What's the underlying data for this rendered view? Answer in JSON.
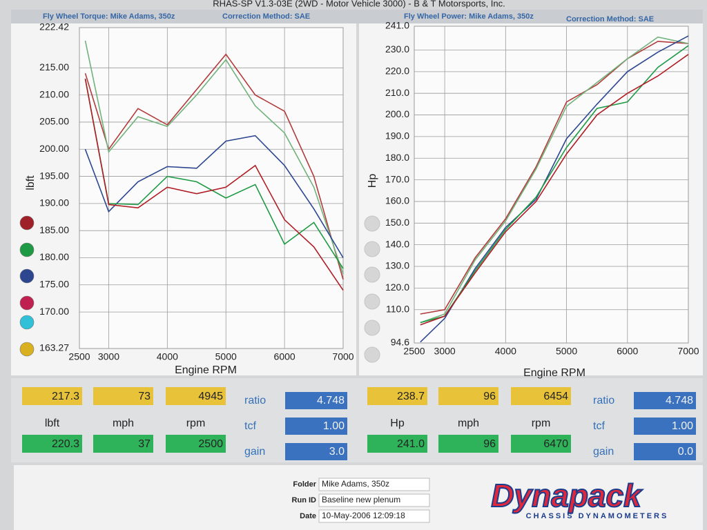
{
  "header": {
    "title": "RHAS-SP V1.3-03E  (2WD - Motor Vehicle 3000) - B & T Motorsports, Inc."
  },
  "chart_data": [
    {
      "type": "line",
      "title": "Fly Wheel Torque: Mike Adams, 350z",
      "subtitle": "Correction Method: SAE",
      "x_label": "Engine RPM",
      "y_label": "lbft",
      "x": [
        2600,
        3000,
        3500,
        4000,
        4500,
        5000,
        5500,
        6000,
        6500,
        7000
      ],
      "xlim": [
        2500,
        7000
      ],
      "xticks": [
        2500,
        3000,
        4000,
        5000,
        6000,
        7000
      ],
      "ylim": [
        163.27,
        222.42
      ],
      "yticks": [
        222.42,
        {
          "value": 215,
          "label": "215.00"
        },
        {
          "value": 210,
          "label": "210.00"
        },
        {
          "value": 205,
          "label": "205.00"
        },
        {
          "value": 200,
          "label": "200.00"
        },
        {
          "value": 195,
          "label": "195.00"
        },
        {
          "value": 190,
          "label": "190.00"
        },
        {
          "value": 185,
          "label": "185.00"
        },
        {
          "value": 180,
          "label": "180.00"
        },
        {
          "value": 175,
          "label": "175.00"
        },
        {
          "value": 170,
          "label": "170.00"
        },
        163.27
      ],
      "grid": true,
      "legend_colors": [
        "#a0202a",
        "#1e9a44",
        "#2c4690",
        "#c02050",
        "#30c0d8",
        "#d8b020"
      ],
      "series": [
        {
          "color": "#b23a3a",
          "values": [
            214,
            200,
            207.5,
            204.5,
            211,
            217.5,
            210,
            207,
            195,
            176
          ]
        },
        {
          "color": "#6fb27a",
          "values": [
            220,
            199.5,
            206,
            204.2,
            210,
            216.5,
            208,
            203,
            193,
            177
          ]
        },
        {
          "color": "#2c4690",
          "values": [
            200,
            188.5,
            194,
            196.8,
            196.5,
            201.5,
            202.5,
            197,
            189,
            180
          ]
        },
        {
          "color": "#1e9a44",
          "values": [
            213,
            190,
            189.8,
            195,
            194,
            191,
            193.5,
            182.5,
            186.5,
            178
          ]
        },
        {
          "color": "#b01c24",
          "values": [
            213,
            189.8,
            189.2,
            193,
            191.8,
            193,
            197,
            187,
            182,
            174
          ]
        }
      ]
    },
    {
      "type": "line",
      "title": "Fly Wheel Power: Mike Adams, 350z",
      "subtitle": "Correction Method: SAE",
      "x_label": "Engine RPM",
      "y_label": "Hp",
      "x": [
        2600,
        3000,
        3500,
        4000,
        4500,
        5000,
        5500,
        6000,
        6500,
        7000
      ],
      "xlim": [
        2500,
        7000
      ],
      "xticks": [
        2500,
        3000,
        4000,
        5000,
        6000,
        7000
      ],
      "ylim": [
        94.6,
        241.0
      ],
      "yticks": [
        {
          "value": 241,
          "label": "241.0"
        },
        {
          "value": 230,
          "label": "230.0"
        },
        {
          "value": 220,
          "label": "220.0"
        },
        {
          "value": 210,
          "label": "210.0"
        },
        {
          "value": 200,
          "label": "200.0"
        },
        {
          "value": 190,
          "label": "190.0"
        },
        {
          "value": 180,
          "label": "180.0"
        },
        {
          "value": 170,
          "label": "170.0"
        },
        {
          "value": 160,
          "label": "160.0"
        },
        {
          "value": 150,
          "label": "150.0"
        },
        {
          "value": 140,
          "label": "140.0"
        },
        {
          "value": 130,
          "label": "130.0"
        },
        {
          "value": 120,
          "label": "120.0"
        },
        {
          "value": 110,
          "label": "110.0"
        },
        94.6
      ],
      "grid": true,
      "series": [
        {
          "color": "#b23a3a",
          "values": [
            108,
            110,
            134,
            152,
            176,
            206,
            214,
            226,
            234,
            233
          ]
        },
        {
          "color": "#6fb27a",
          "values": [
            104,
            108,
            133,
            151,
            175,
            204,
            215,
            226,
            236,
            233
          ]
        },
        {
          "color": "#2c4690",
          "values": [
            95,
            106,
            129,
            148,
            161,
            189,
            205,
            220,
            229,
            236.5
          ]
        },
        {
          "color": "#1e9a44",
          "values": [
            104,
            107,
            128,
            147,
            162,
            185,
            203,
            206,
            222,
            232
          ]
        },
        {
          "color": "#b01c24",
          "values": [
            103,
            107,
            127,
            146,
            160,
            182,
            200,
            210,
            218,
            228
          ]
        }
      ]
    }
  ],
  "panels": [
    {
      "top": [
        "217.3",
        "73",
        "4945"
      ],
      "units": [
        "lbft",
        "mph",
        "rpm"
      ],
      "bottom": [
        "220.3",
        "37",
        "2500"
      ],
      "settings": [
        {
          "label": "ratio",
          "value": "4.748"
        },
        {
          "label": "tcf",
          "value": "1.00"
        },
        {
          "label": "gain",
          "value": "3.0"
        }
      ]
    },
    {
      "top": [
        "238.7",
        "96",
        "6454"
      ],
      "units": [
        "Hp",
        "mph",
        "rpm"
      ],
      "bottom": [
        "241.0",
        "96",
        "6470"
      ],
      "settings": [
        {
          "label": "ratio",
          "value": "4.748"
        },
        {
          "label": "tcf",
          "value": "1.00"
        },
        {
          "label": "gain",
          "value": "0.0"
        }
      ]
    }
  ],
  "footer": {
    "fields": [
      {
        "label": "Folder",
        "value": "Mike Adams, 350z"
      },
      {
        "label": "Run ID",
        "value": "Baseline new plenum"
      },
      {
        "label": "Date",
        "value": "10-May-2006  12:09:18"
      }
    ],
    "logo": "Dynapack",
    "logo_tagline": "CHASSIS DYNAMOMETERS"
  }
}
